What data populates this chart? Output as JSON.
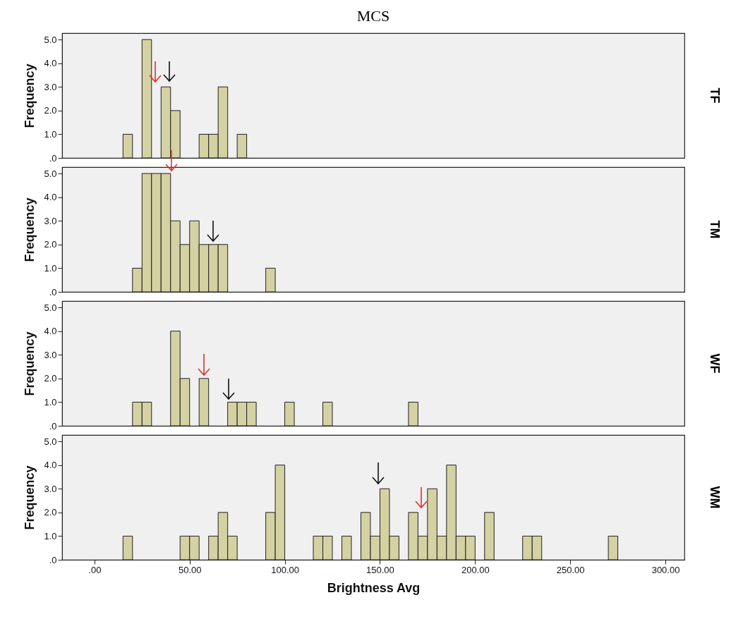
{
  "chart_data": [
    {
      "type": "histogram",
      "title": "MCS",
      "ylabel": "Frequency",
      "y2label": "TF",
      "color": "#d4d1a3",
      "tick_labels": "y",
      "bins": [
        0,
        5,
        10,
        15,
        20,
        25,
        30,
        35,
        40,
        45,
        50,
        55,
        60,
        65,
        70,
        75,
        80,
        85,
        90,
        95,
        100,
        105,
        110,
        115,
        120,
        125,
        130,
        135,
        140,
        145,
        150,
        155,
        160,
        165,
        170,
        175,
        180,
        185,
        190,
        195,
        200,
        205,
        210,
        215,
        220,
        225,
        230,
        235,
        240,
        245,
        250,
        255,
        260,
        265,
        270,
        275,
        280,
        285,
        290,
        295,
        300
      ],
      "values": [
        0,
        0,
        0,
        1,
        0,
        5,
        0,
        3,
        2,
        0,
        0,
        1,
        1,
        3,
        0,
        1,
        0,
        0,
        0,
        0,
        0,
        0,
        0,
        0,
        0,
        0,
        0,
        0,
        0,
        0,
        0,
        0,
        0,
        0,
        0,
        0,
        0,
        0,
        0,
        0,
        0,
        0,
        0,
        0,
        0,
        0,
        0,
        0,
        0,
        0,
        0,
        0,
        0,
        0,
        0,
        0,
        0,
        0,
        0,
        0
      ],
      "xlim": [
        -17,
        310
      ],
      "ylim": [
        0,
        5.27
      ],
      "yticks": [
        {
          "value": 0,
          "label": ".0"
        },
        {
          "value": 1,
          "label": "1.0"
        },
        {
          "value": 2,
          "label": "2.0"
        },
        {
          "value": 3,
          "label": "3.0"
        },
        {
          "value": 4,
          "label": "4.0"
        },
        {
          "value": 5,
          "label": "5.0"
        }
      ]
    },
    {
      "type": "histogram",
      "ylabel": "Frequency",
      "y2label": "TM",
      "color": "#d4d1a3",
      "tick_labels": "y",
      "bins": [
        0,
        5,
        10,
        15,
        20,
        25,
        30,
        35,
        40,
        45,
        50,
        55,
        60,
        65,
        70,
        75,
        80,
        85,
        90,
        95,
        100,
        105,
        110,
        115,
        120,
        125,
        130,
        135,
        140,
        145,
        150,
        155,
        160,
        165,
        170,
        175,
        180,
        185,
        190,
        195,
        200,
        205,
        210,
        215,
        220,
        225,
        230,
        235,
        240,
        245,
        250,
        255,
        260,
        265,
        270,
        275,
        280,
        285,
        290,
        295,
        300
      ],
      "values": [
        0,
        0,
        0,
        0,
        1,
        5,
        5,
        5,
        3,
        2,
        3,
        2,
        2,
        2,
        0,
        0,
        0,
        0,
        1,
        0,
        0,
        0,
        0,
        0,
        0,
        0,
        0,
        0,
        0,
        0,
        0,
        0,
        0,
        0,
        0,
        0,
        0,
        0,
        0,
        0,
        0,
        0,
        0,
        0,
        0,
        0,
        0,
        0,
        0,
        0,
        0,
        0,
        0,
        0,
        0,
        0,
        0,
        0,
        0,
        0
      ],
      "xlim": [
        -17,
        310
      ],
      "ylim": [
        0,
        5.27
      ],
      "yticks": [
        {
          "value": 0,
          "label": ".0"
        },
        {
          "value": 1,
          "label": "1.0"
        },
        {
          "value": 2,
          "label": "2.0"
        },
        {
          "value": 3,
          "label": "3.0"
        },
        {
          "value": 4,
          "label": "4.0"
        },
        {
          "value": 5,
          "label": "5.0"
        }
      ]
    },
    {
      "type": "histogram",
      "ylabel": "Frequency",
      "y2label": "WF",
      "color": "#d4d1a3",
      "tick_labels": "y",
      "bins": [
        0,
        5,
        10,
        15,
        20,
        25,
        30,
        35,
        40,
        45,
        50,
        55,
        60,
        65,
        70,
        75,
        80,
        85,
        90,
        95,
        100,
        105,
        110,
        115,
        120,
        125,
        130,
        135,
        140,
        145,
        150,
        155,
        160,
        165,
        170,
        175,
        180,
        185,
        190,
        195,
        200,
        205,
        210,
        215,
        220,
        225,
        230,
        235,
        240,
        245,
        250,
        255,
        260,
        265,
        270,
        275,
        280,
        285,
        290,
        295,
        300
      ],
      "values": [
        0,
        0,
        0,
        0,
        1,
        1,
        0,
        0,
        4,
        2,
        0,
        2,
        0,
        0,
        1,
        1,
        1,
        0,
        0,
        0,
        1,
        0,
        0,
        0,
        1,
        0,
        0,
        0,
        0,
        0,
        0,
        0,
        0,
        1,
        0,
        0,
        0,
        0,
        0,
        0,
        0,
        0,
        0,
        0,
        0,
        0,
        0,
        0,
        0,
        0,
        0,
        0,
        0,
        0,
        0,
        0,
        0,
        0,
        0,
        0
      ],
      "xlim": [
        -17,
        310
      ],
      "ylim": [
        0,
        5.27
      ],
      "yticks": [
        {
          "value": 0,
          "label": ".0"
        },
        {
          "value": 1,
          "label": "1.0"
        },
        {
          "value": 2,
          "label": "2.0"
        },
        {
          "value": 3,
          "label": "3.0"
        },
        {
          "value": 4,
          "label": "4.0"
        },
        {
          "value": 5,
          "label": "5.0"
        }
      ]
    },
    {
      "type": "histogram",
      "xlabel": "Brightness Avg",
      "ylabel": "Frequency",
      "y2label": "WM",
      "color": "#d4d1a3",
      "bins": [
        0,
        5,
        10,
        15,
        20,
        25,
        30,
        35,
        40,
        45,
        50,
        55,
        60,
        65,
        70,
        75,
        80,
        85,
        90,
        95,
        100,
        105,
        110,
        115,
        120,
        125,
        130,
        135,
        140,
        145,
        150,
        155,
        160,
        165,
        170,
        175,
        180,
        185,
        190,
        195,
        200,
        205,
        210,
        215,
        220,
        225,
        230,
        235,
        240,
        245,
        250,
        255,
        260,
        265,
        270,
        275,
        280,
        285,
        290,
        295,
        300
      ],
      "values": [
        0,
        0,
        0,
        1,
        0,
        0,
        0,
        0,
        0,
        1,
        1,
        0,
        1,
        2,
        1,
        0,
        0,
        0,
        2,
        4,
        0,
        0,
        0,
        1,
        1,
        0,
        1,
        0,
        2,
        1,
        3,
        1,
        0,
        2,
        1,
        3,
        1,
        4,
        1,
        1,
        0,
        2,
        0,
        0,
        0,
        1,
        1,
        0,
        0,
        0,
        0,
        0,
        0,
        0,
        1,
        0,
        0,
        0,
        0,
        0
      ],
      "xlim": [
        -17,
        310
      ],
      "ylim": [
        0,
        5.27
      ],
      "xticks": [
        {
          "value": 0,
          "label": ".00"
        },
        {
          "value": 50,
          "label": "50.00"
        },
        {
          "value": 100,
          "label": "100.00"
        },
        {
          "value": 150,
          "label": "150.00"
        },
        {
          "value": 200,
          "label": "200.00"
        },
        {
          "value": 250,
          "label": "250.00"
        },
        {
          "value": 300,
          "label": "300.00"
        }
      ],
      "yticks": [
        {
          "value": 0,
          "label": ".0"
        },
        {
          "value": 1,
          "label": "1.0"
        },
        {
          "value": 2,
          "label": "2.0"
        },
        {
          "value": 3,
          "label": "3.0"
        },
        {
          "value": 4,
          "label": "4.0"
        },
        {
          "value": 5,
          "label": "5.0"
        }
      ]
    }
  ]
}
